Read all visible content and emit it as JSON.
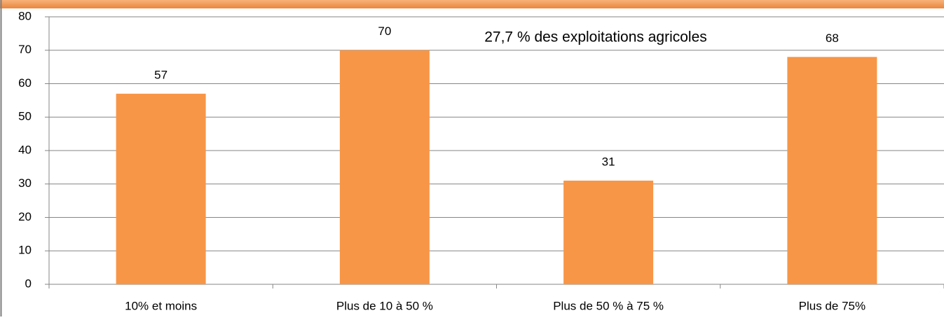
{
  "chart_data": {
    "type": "bar",
    "annotation": "27,7 % des exploitations agricoles",
    "categories": [
      "10% et moins",
      "Plus de 10 à 50 %",
      "Plus de 50 % à 75 %",
      "Plus de 75%"
    ],
    "values": [
      57,
      70,
      31,
      68
    ],
    "color": "#f79646",
    "ylim": [
      0,
      80
    ],
    "yticks": [
      0,
      10,
      20,
      30,
      40,
      50,
      60,
      70,
      80
    ],
    "grid": true
  }
}
